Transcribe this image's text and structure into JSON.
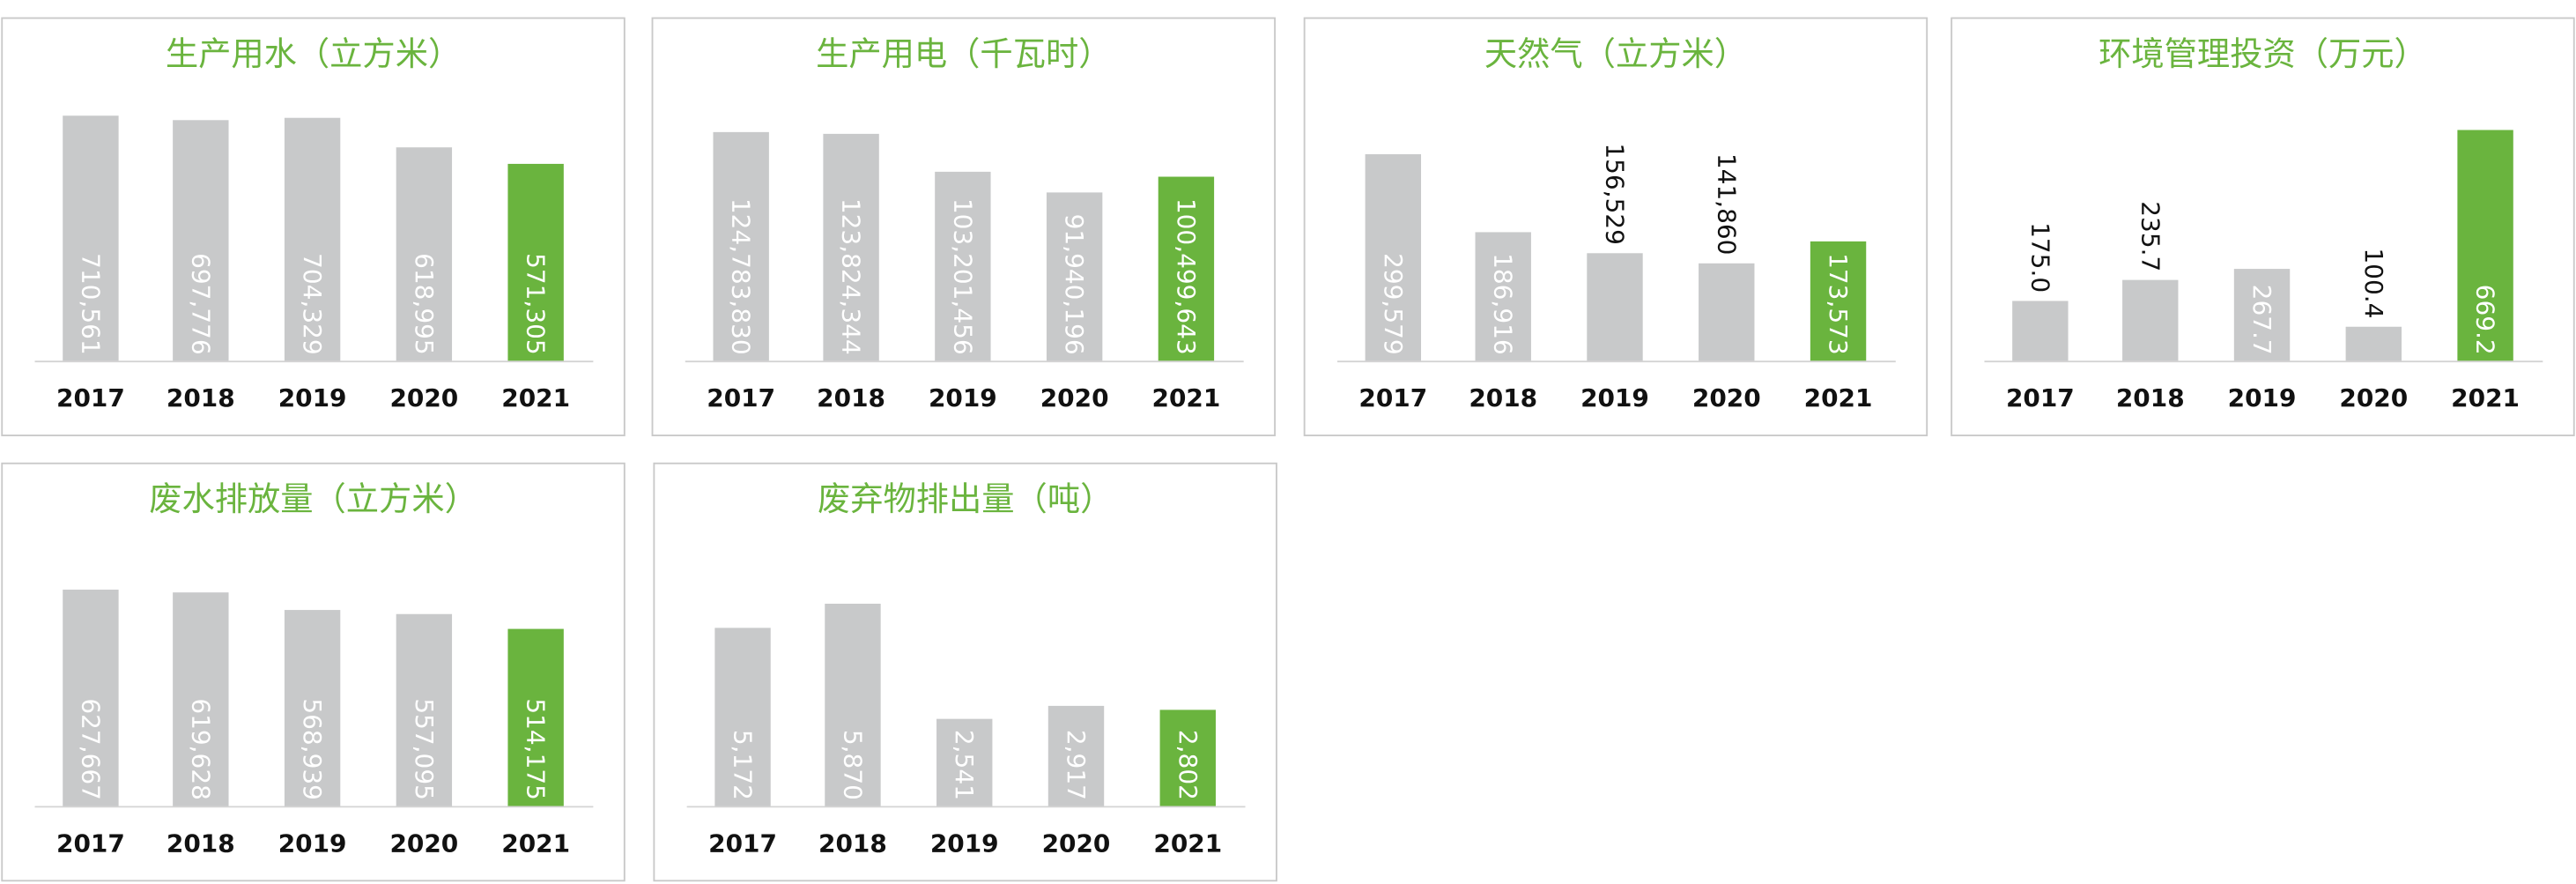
{
  "chart_data": [
    {
      "type": "bar",
      "title": "生产用水（立方米）",
      "categories": [
        "2017",
        "2018",
        "2019",
        "2020",
        "2021"
      ],
      "values": [
        710561,
        697776,
        704329,
        618995,
        571305
      ],
      "value_labels": [
        "710,561",
        "697,776",
        "704,329",
        "618,995",
        "571,305"
      ],
      "colors": [
        "#c8c9ca",
        "#c8c9ca",
        "#c8c9ca",
        "#c8c9ca",
        "#6ab43e"
      ],
      "ylim": [
        0,
        760000
      ]
    },
    {
      "type": "bar",
      "title": "生产用电（千瓦时）",
      "categories": [
        "2017",
        "2018",
        "2019",
        "2020",
        "2021"
      ],
      "values": [
        124783830,
        123824344,
        103201456,
        91940196,
        100499643
      ],
      "value_labels": [
        "124,783,830",
        "123,824,344",
        "103,201,456",
        "91,940,196",
        "100,499,643"
      ],
      "colors": [
        "#c8c9ca",
        "#c8c9ca",
        "#c8c9ca",
        "#c8c9ca",
        "#6ab43e"
      ],
      "ylim": [
        0,
        143000000
      ]
    },
    {
      "type": "bar",
      "title": "天然气（立方米）",
      "categories": [
        "2017",
        "2018",
        "2019",
        "2020",
        "2021"
      ],
      "values": [
        299579,
        186916,
        156529,
        141860,
        173573
      ],
      "value_labels": [
        "299,579",
        "186,916",
        "156,529",
        "141,860",
        "173,573"
      ],
      "colors": [
        "#c8c9ca",
        "#c8c9ca",
        "#c8c9ca",
        "#c8c9ca",
        "#6ab43e"
      ],
      "ylim": [
        0,
        380000
      ]
    },
    {
      "type": "bar",
      "title": "环境管理投资（万元）",
      "categories": [
        "2017",
        "2018",
        "2019",
        "2020",
        "2021"
      ],
      "values": [
        175,
        235.7,
        267.7,
        100.4,
        669.2
      ],
      "value_labels": [
        "175.0",
        "235.7",
        "267.7",
        "100.4",
        "669.2"
      ],
      "colors": [
        "#c8c9ca",
        "#c8c9ca",
        "#c8c9ca",
        "#c8c9ca",
        "#6ab43e"
      ],
      "ylim": [
        0,
        760
      ]
    },
    {
      "type": "bar",
      "title": "废水排放量（立方米）",
      "categories": [
        "2017",
        "2018",
        "2019",
        "2020",
        "2021"
      ],
      "values": [
        627667,
        619628,
        568939,
        557095,
        514175
      ],
      "value_labels": [
        "627,667",
        "619,628",
        "568,939",
        "557,095",
        "514,175"
      ],
      "colors": [
        "#c8c9ca",
        "#c8c9ca",
        "#c8c9ca",
        "#c8c9ca",
        "#6ab43e"
      ],
      "ylim": [
        0,
        760000
      ]
    },
    {
      "type": "bar",
      "title": "废弃物排出量（吨）",
      "categories": [
        "2017",
        "2018",
        "2019",
        "2020",
        "2021"
      ],
      "values": [
        5172,
        5870,
        2541,
        2917,
        2802
      ],
      "value_labels": [
        "5,172",
        "5,870",
        "2,541",
        "2,917",
        "2,802"
      ],
      "colors": [
        "#c8c9ca",
        "#c8c9ca",
        "#c8c9ca",
        "#c8c9ca",
        "#6ab43e"
      ],
      "ylim": [
        0,
        7600
      ]
    }
  ]
}
